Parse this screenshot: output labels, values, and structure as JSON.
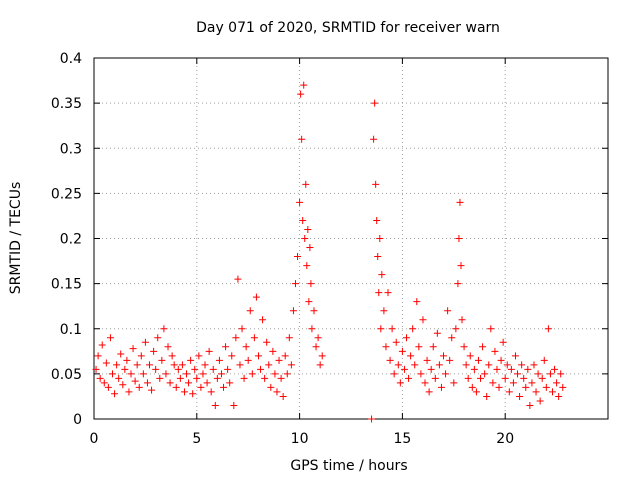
{
  "chart_data": {
    "type": "scatter",
    "title": "Day 071 of 2020, SRMTID for receiver warn",
    "xlabel": "GPS time / hours",
    "ylabel": "SRMTID / TECUs",
    "xlim": [
      0,
      25
    ],
    "ylim": [
      0,
      0.4
    ],
    "xticks": [
      0,
      5,
      10,
      15,
      20
    ],
    "yticks": [
      0,
      0.05,
      0.1,
      0.15,
      0.2,
      0.25,
      0.3,
      0.35,
      0.4
    ],
    "xtick_labels": [
      "0",
      "5",
      "10",
      "15",
      "20"
    ],
    "ytick_labels": [
      "0",
      "0.05",
      "0.1",
      "0.15",
      "0.2",
      "0.25",
      "0.3",
      "0.35",
      "0.4"
    ],
    "grid": true,
    "marker": "plus",
    "color": "#ff0000",
    "series": [
      {
        "name": "SRMTID",
        "points": [
          [
            0.1,
            0.055
          ],
          [
            0.2,
            0.07
          ],
          [
            0.3,
            0.045
          ],
          [
            0.4,
            0.082
          ],
          [
            0.5,
            0.04
          ],
          [
            0.6,
            0.062
          ],
          [
            0.7,
            0.035
          ],
          [
            0.8,
            0.09
          ],
          [
            0.9,
            0.05
          ],
          [
            1.0,
            0.028
          ],
          [
            1.1,
            0.06
          ],
          [
            1.2,
            0.045
          ],
          [
            1.3,
            0.072
          ],
          [
            1.4,
            0.038
          ],
          [
            1.5,
            0.055
          ],
          [
            1.6,
            0.065
          ],
          [
            1.7,
            0.03
          ],
          [
            1.8,
            0.05
          ],
          [
            1.9,
            0.078
          ],
          [
            2.0,
            0.042
          ],
          [
            2.1,
            0.06
          ],
          [
            2.2,
            0.035
          ],
          [
            2.3,
            0.07
          ],
          [
            2.4,
            0.05
          ],
          [
            2.5,
            0.085
          ],
          [
            2.6,
            0.04
          ],
          [
            2.7,
            0.06
          ],
          [
            2.8,
            0.032
          ],
          [
            2.9,
            0.075
          ],
          [
            3.0,
            0.055
          ],
          [
            3.1,
            0.09
          ],
          [
            3.2,
            0.045
          ],
          [
            3.3,
            0.065
          ],
          [
            3.4,
            0.1
          ],
          [
            3.5,
            0.05
          ],
          [
            3.6,
            0.08
          ],
          [
            3.7,
            0.04
          ],
          [
            3.8,
            0.07
          ],
          [
            3.9,
            0.06
          ],
          [
            4.0,
            0.035
          ],
          [
            4.1,
            0.055
          ],
          [
            4.2,
            0.045
          ],
          [
            4.3,
            0.06
          ],
          [
            4.4,
            0.03
          ],
          [
            4.5,
            0.05
          ],
          [
            4.6,
            0.04
          ],
          [
            4.7,
            0.065
          ],
          [
            4.8,
            0.028
          ],
          [
            4.9,
            0.055
          ],
          [
            5.0,
            0.045
          ],
          [
            5.1,
            0.07
          ],
          [
            5.2,
            0.035
          ],
          [
            5.3,
            0.05
          ],
          [
            5.4,
            0.06
          ],
          [
            5.5,
            0.04
          ],
          [
            5.6,
            0.075
          ],
          [
            5.7,
            0.03
          ],
          [
            5.8,
            0.055
          ],
          [
            5.9,
            0.015
          ],
          [
            6.0,
            0.045
          ],
          [
            6.1,
            0.065
          ],
          [
            6.2,
            0.05
          ],
          [
            6.3,
            0.035
          ],
          [
            6.4,
            0.08
          ],
          [
            6.5,
            0.055
          ],
          [
            6.6,
            0.04
          ],
          [
            6.7,
            0.07
          ],
          [
            6.8,
            0.015
          ],
          [
            6.9,
            0.09
          ],
          [
            7.0,
            0.155
          ],
          [
            7.1,
            0.06
          ],
          [
            7.2,
            0.1
          ],
          [
            7.3,
            0.045
          ],
          [
            7.4,
            0.08
          ],
          [
            7.5,
            0.065
          ],
          [
            7.6,
            0.12
          ],
          [
            7.7,
            0.05
          ],
          [
            7.8,
            0.09
          ],
          [
            7.9,
            0.135
          ],
          [
            8.0,
            0.07
          ],
          [
            8.1,
            0.055
          ],
          [
            8.2,
            0.11
          ],
          [
            8.3,
            0.045
          ],
          [
            8.4,
            0.085
          ],
          [
            8.5,
            0.06
          ],
          [
            8.6,
            0.035
          ],
          [
            8.7,
            0.075
          ],
          [
            8.8,
            0.05
          ],
          [
            8.9,
            0.03
          ],
          [
            9.0,
            0.065
          ],
          [
            9.1,
            0.045
          ],
          [
            9.2,
            0.025
          ],
          [
            9.3,
            0.07
          ],
          [
            9.4,
            0.05
          ],
          [
            9.5,
            0.09
          ],
          [
            9.6,
            0.06
          ],
          [
            9.7,
            0.12
          ],
          [
            9.8,
            0.15
          ],
          [
            9.9,
            0.18
          ],
          [
            10.0,
            0.24
          ],
          [
            10.05,
            0.36
          ],
          [
            10.1,
            0.31
          ],
          [
            10.15,
            0.22
          ],
          [
            10.2,
            0.37
          ],
          [
            10.25,
            0.2
          ],
          [
            10.3,
            0.26
          ],
          [
            10.35,
            0.17
          ],
          [
            10.4,
            0.21
          ],
          [
            10.45,
            0.13
          ],
          [
            10.5,
            0.19
          ],
          [
            10.55,
            0.15
          ],
          [
            10.6,
            0.1
          ],
          [
            10.7,
            0.12
          ],
          [
            10.8,
            0.08
          ],
          [
            10.9,
            0.09
          ],
          [
            11.0,
            0.06
          ],
          [
            11.1,
            0.07
          ],
          [
            13.5,
            0.0
          ],
          [
            13.6,
            0.31
          ],
          [
            13.65,
            0.35
          ],
          [
            13.7,
            0.26
          ],
          [
            13.75,
            0.22
          ],
          [
            13.8,
            0.18
          ],
          [
            13.85,
            0.14
          ],
          [
            13.9,
            0.2
          ],
          [
            13.95,
            0.1
          ],
          [
            14.0,
            0.16
          ],
          [
            14.1,
            0.12
          ],
          [
            14.2,
            0.08
          ],
          [
            14.3,
            0.14
          ],
          [
            14.4,
            0.065
          ],
          [
            14.5,
            0.1
          ],
          [
            14.6,
            0.05
          ],
          [
            14.7,
            0.085
          ],
          [
            14.8,
            0.06
          ],
          [
            14.9,
            0.04
          ],
          [
            15.0,
            0.075
          ],
          [
            15.1,
            0.055
          ],
          [
            15.2,
            0.09
          ],
          [
            15.3,
            0.045
          ],
          [
            15.4,
            0.07
          ],
          [
            15.5,
            0.1
          ],
          [
            15.6,
            0.06
          ],
          [
            15.7,
            0.13
          ],
          [
            15.8,
            0.08
          ],
          [
            15.9,
            0.05
          ],
          [
            16.0,
            0.11
          ],
          [
            16.1,
            0.04
          ],
          [
            16.2,
            0.065
          ],
          [
            16.3,
            0.03
          ],
          [
            16.4,
            0.055
          ],
          [
            16.5,
            0.08
          ],
          [
            16.6,
            0.045
          ],
          [
            16.7,
            0.095
          ],
          [
            16.8,
            0.06
          ],
          [
            16.9,
            0.035
          ],
          [
            17.0,
            0.07
          ],
          [
            17.1,
            0.05
          ],
          [
            17.2,
            0.12
          ],
          [
            17.3,
            0.065
          ],
          [
            17.4,
            0.09
          ],
          [
            17.5,
            0.04
          ],
          [
            17.6,
            0.1
          ],
          [
            17.7,
            0.15
          ],
          [
            17.75,
            0.2
          ],
          [
            17.8,
            0.24
          ],
          [
            17.85,
            0.17
          ],
          [
            17.9,
            0.11
          ],
          [
            18.0,
            0.08
          ],
          [
            18.1,
            0.06
          ],
          [
            18.2,
            0.045
          ],
          [
            18.3,
            0.07
          ],
          [
            18.4,
            0.035
          ],
          [
            18.5,
            0.055
          ],
          [
            18.6,
            0.03
          ],
          [
            18.7,
            0.065
          ],
          [
            18.8,
            0.045
          ],
          [
            18.9,
            0.08
          ],
          [
            19.0,
            0.05
          ],
          [
            19.1,
            0.025
          ],
          [
            19.2,
            0.06
          ],
          [
            19.3,
            0.1
          ],
          [
            19.4,
            0.04
          ],
          [
            19.5,
            0.075
          ],
          [
            19.6,
            0.055
          ],
          [
            19.7,
            0.035
          ],
          [
            19.8,
            0.065
          ],
          [
            19.9,
            0.085
          ],
          [
            20.0,
            0.045
          ],
          [
            20.1,
            0.06
          ],
          [
            20.2,
            0.03
          ],
          [
            20.3,
            0.055
          ],
          [
            20.4,
            0.04
          ],
          [
            20.5,
            0.07
          ],
          [
            20.6,
            0.05
          ],
          [
            20.7,
            0.025
          ],
          [
            20.8,
            0.06
          ],
          [
            20.9,
            0.045
          ],
          [
            21.0,
            0.035
          ],
          [
            21.1,
            0.055
          ],
          [
            21.2,
            0.015
          ],
          [
            21.3,
            0.04
          ],
          [
            21.4,
            0.06
          ],
          [
            21.5,
            0.03
          ],
          [
            21.6,
            0.05
          ],
          [
            21.7,
            0.02
          ],
          [
            21.8,
            0.045
          ],
          [
            21.9,
            0.065
          ],
          [
            22.0,
            0.035
          ],
          [
            22.1,
            0.1
          ],
          [
            22.2,
            0.05
          ],
          [
            22.3,
            0.03
          ],
          [
            22.4,
            0.055
          ],
          [
            22.5,
            0.04
          ],
          [
            22.6,
            0.025
          ],
          [
            22.7,
            0.05
          ],
          [
            22.8,
            0.035
          ]
        ]
      }
    ]
  }
}
